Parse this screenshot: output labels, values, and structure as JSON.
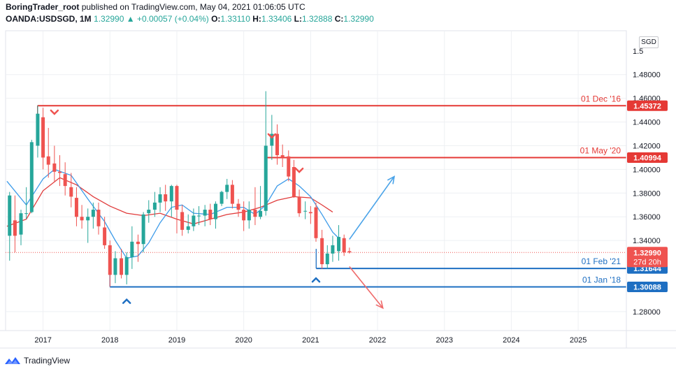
{
  "header": {
    "author": "BoringTrader_root",
    "published_text": "published on TradingView.com, May 04, 2021 01:06:05 UTC",
    "symbol": "OANDA:USDSGD, 1M",
    "last": "1.32990",
    "change_arrow": "▲",
    "change": "+0.00057 (+0.04%)",
    "o_label": "O:",
    "o_val": "1.33110",
    "h_label": "H:",
    "h_val": "1.33406",
    "l_label": "L:",
    "l_val": "1.32888",
    "c_label": "C:",
    "c_val": "1.32990"
  },
  "currency_badge": "SGD",
  "footer": {
    "brand": "TradingView",
    "logo_icon": "tradingview-logo-icon"
  },
  "colors": {
    "bull": "#26a69a",
    "bear": "#ef5350",
    "resistance": "#e53935",
    "support": "#1e6fc2",
    "ma_fast": "#3d9be9",
    "ma_slow": "#e03b3b",
    "arrow_up": "#4aa3e8",
    "arrow_down": "#ef6b6b"
  },
  "chart_data": {
    "type": "candlestick",
    "timeframe": "1M",
    "y_ticks": [
      "1.48000",
      "1.46000",
      "1.44000",
      "1.42000",
      "1.40000",
      "1.38000",
      "1.36000",
      "1.34000",
      "1.28000"
    ],
    "y_tick_values": [
      1.48,
      1.46,
      1.44,
      1.42,
      1.4,
      1.38,
      1.36,
      1.34,
      1.28
    ],
    "partial_top_tick": "1.5",
    "x_ticks": [
      "2017",
      "2018",
      "2019",
      "2020",
      "2021",
      "2022",
      "2023",
      "2024",
      "2025"
    ],
    "ylim": [
      1.264,
      1.517
    ],
    "xlim": [
      2016.44,
      2025.72
    ],
    "levels": [
      {
        "label": "01 Dec '16",
        "value": 1.45372,
        "badge": "1.45372",
        "kind": "resistance",
        "start": 2016.917
      },
      {
        "label": "01 May '20",
        "value": 1.40994,
        "badge": "1.40994",
        "kind": "resistance",
        "start": 2020.333
      },
      {
        "label": "01 Feb '21",
        "value": 1.31644,
        "badge": "1.31644",
        "kind": "support",
        "start": 2021.083
      },
      {
        "label": "01 Jan '18",
        "value": 1.30088,
        "badge": "1.30088",
        "kind": "support",
        "start": 2018.0
      }
    ],
    "last_price": {
      "value": 1.3299,
      "badge": "1.32990",
      "countdown": "27d 20h"
    },
    "candles": [
      {
        "t": 2016.5,
        "o": 1.344,
        "h": 1.381,
        "l": 1.323,
        "c": 1.378
      },
      {
        "t": 2016.58,
        "o": 1.357,
        "h": 1.378,
        "l": 1.33,
        "c": 1.344
      },
      {
        "t": 2016.67,
        "o": 1.345,
        "h": 1.366,
        "l": 1.336,
        "c": 1.363
      },
      {
        "t": 2016.75,
        "o": 1.363,
        "h": 1.385,
        "l": 1.358,
        "c": 1.363
      },
      {
        "t": 2016.83,
        "o": 1.364,
        "h": 1.425,
        "l": 1.363,
        "c": 1.423
      },
      {
        "t": 2016.92,
        "o": 1.42,
        "h": 1.454,
        "l": 1.41,
        "c": 1.447
      },
      {
        "t": 2017.0,
        "o": 1.444,
        "h": 1.452,
        "l": 1.4,
        "c": 1.41
      },
      {
        "t": 2017.08,
        "o": 1.411,
        "h": 1.435,
        "l": 1.393,
        "c": 1.404
      },
      {
        "t": 2017.17,
        "o": 1.405,
        "h": 1.42,
        "l": 1.39,
        "c": 1.398
      },
      {
        "t": 2017.25,
        "o": 1.398,
        "h": 1.412,
        "l": 1.386,
        "c": 1.397
      },
      {
        "t": 2017.33,
        "o": 1.396,
        "h": 1.406,
        "l": 1.378,
        "c": 1.386
      },
      {
        "t": 2017.42,
        "o": 1.385,
        "h": 1.397,
        "l": 1.368,
        "c": 1.377
      },
      {
        "t": 2017.5,
        "o": 1.376,
        "h": 1.385,
        "l": 1.352,
        "c": 1.36
      },
      {
        "t": 2017.58,
        "o": 1.36,
        "h": 1.37,
        "l": 1.35,
        "c": 1.357
      },
      {
        "t": 2017.67,
        "o": 1.357,
        "h": 1.367,
        "l": 1.338,
        "c": 1.36
      },
      {
        "t": 2017.75,
        "o": 1.36,
        "h": 1.372,
        "l": 1.35,
        "c": 1.366
      },
      {
        "t": 2017.83,
        "o": 1.366,
        "h": 1.372,
        "l": 1.345,
        "c": 1.352
      },
      {
        "t": 2017.92,
        "o": 1.351,
        "h": 1.36,
        "l": 1.333,
        "c": 1.336
      },
      {
        "t": 2018.0,
        "o": 1.336,
        "h": 1.34,
        "l": 1.301,
        "c": 1.311
      },
      {
        "t": 2018.08,
        "o": 1.311,
        "h": 1.331,
        "l": 1.304,
        "c": 1.325
      },
      {
        "t": 2018.17,
        "o": 1.325,
        "h": 1.333,
        "l": 1.308,
        "c": 1.311
      },
      {
        "t": 2018.25,
        "o": 1.311,
        "h": 1.33,
        "l": 1.303,
        "c": 1.326
      },
      {
        "t": 2018.33,
        "o": 1.326,
        "h": 1.352,
        "l": 1.316,
        "c": 1.339
      },
      {
        "t": 2018.42,
        "o": 1.339,
        "h": 1.345,
        "l": 1.322,
        "c": 1.337
      },
      {
        "t": 2018.5,
        "o": 1.337,
        "h": 1.364,
        "l": 1.33,
        "c": 1.362
      },
      {
        "t": 2018.58,
        "o": 1.363,
        "h": 1.374,
        "l": 1.355,
        "c": 1.366
      },
      {
        "t": 2018.67,
        "o": 1.366,
        "h": 1.381,
        "l": 1.36,
        "c": 1.372
      },
      {
        "t": 2018.75,
        "o": 1.372,
        "h": 1.385,
        "l": 1.364,
        "c": 1.379
      },
      {
        "t": 2018.83,
        "o": 1.379,
        "h": 1.387,
        "l": 1.365,
        "c": 1.373
      },
      {
        "t": 2018.92,
        "o": 1.373,
        "h": 1.387,
        "l": 1.36,
        "c": 1.386
      },
      {
        "t": 2019.0,
        "o": 1.386,
        "h": 1.387,
        "l": 1.346,
        "c": 1.366
      },
      {
        "t": 2019.08,
        "o": 1.364,
        "h": 1.37,
        "l": 1.344,
        "c": 1.349
      },
      {
        "t": 2019.17,
        "o": 1.349,
        "h": 1.362,
        "l": 1.346,
        "c": 1.352
      },
      {
        "t": 2019.25,
        "o": 1.352,
        "h": 1.367,
        "l": 1.348,
        "c": 1.361
      },
      {
        "t": 2019.33,
        "o": 1.361,
        "h": 1.369,
        "l": 1.353,
        "c": 1.361
      },
      {
        "t": 2019.42,
        "o": 1.361,
        "h": 1.37,
        "l": 1.352,
        "c": 1.366
      },
      {
        "t": 2019.5,
        "o": 1.366,
        "h": 1.371,
        "l": 1.353,
        "c": 1.358
      },
      {
        "t": 2019.58,
        "o": 1.358,
        "h": 1.373,
        "l": 1.35,
        "c": 1.371
      },
      {
        "t": 2019.67,
        "o": 1.371,
        "h": 1.382,
        "l": 1.369,
        "c": 1.381
      },
      {
        "t": 2019.75,
        "o": 1.381,
        "h": 1.392,
        "l": 1.375,
        "c": 1.387
      },
      {
        "t": 2019.83,
        "o": 1.387,
        "h": 1.391,
        "l": 1.367,
        "c": 1.371
      },
      {
        "t": 2019.92,
        "o": 1.371,
        "h": 1.375,
        "l": 1.36,
        "c": 1.366
      },
      {
        "t": 2020.0,
        "o": 1.366,
        "h": 1.373,
        "l": 1.348,
        "c": 1.357
      },
      {
        "t": 2020.08,
        "o": 1.357,
        "h": 1.373,
        "l": 1.35,
        "c": 1.366
      },
      {
        "t": 2020.17,
        "o": 1.366,
        "h": 1.385,
        "l": 1.353,
        "c": 1.36
      },
      {
        "t": 2020.25,
        "o": 1.36,
        "h": 1.386,
        "l": 1.358,
        "c": 1.365
      },
      {
        "t": 2020.33,
        "o": 1.365,
        "h": 1.466,
        "l": 1.361,
        "c": 1.42
      },
      {
        "t": 2020.42,
        "o": 1.42,
        "h": 1.446,
        "l": 1.408,
        "c": 1.43
      },
      {
        "t": 2020.5,
        "o": 1.43,
        "h": 1.438,
        "l": 1.404,
        "c": 1.412
      },
      {
        "t": 2020.58,
        "o": 1.412,
        "h": 1.421,
        "l": 1.402,
        "c": 1.41
      },
      {
        "t": 2020.67,
        "o": 1.411,
        "h": 1.416,
        "l": 1.39,
        "c": 1.394
      },
      {
        "t": 2020.75,
        "o": 1.402,
        "h": 1.408,
        "l": 1.376,
        "c": 1.377
      },
      {
        "t": 2020.83,
        "o": 1.377,
        "h": 1.383,
        "l": 1.36,
        "c": 1.363
      },
      {
        "t": 2020.92,
        "o": 1.365,
        "h": 1.373,
        "l": 1.358,
        "c": 1.365
      },
      {
        "t": 2021.0,
        "o": 1.364,
        "h": 1.369,
        "l": 1.354,
        "c": 1.363
      },
      {
        "t": 2021.08,
        "o": 1.368,
        "h": 1.372,
        "l": 1.339,
        "c": 1.342
      },
      {
        "t": 2021.17,
        "o": 1.342,
        "h": 1.349,
        "l": 1.316,
        "c": 1.32
      },
      {
        "t": 2021.25,
        "o": 1.32,
        "h": 1.336,
        "l": 1.316,
        "c": 1.329
      },
      {
        "t": 2021.33,
        "o": 1.329,
        "h": 1.344,
        "l": 1.322,
        "c": 1.336
      },
      {
        "t": 2021.42,
        "o": 1.331,
        "h": 1.353,
        "l": 1.323,
        "c": 1.343
      },
      {
        "t": 2021.5,
        "o": 1.342,
        "h": 1.345,
        "l": 1.327,
        "c": 1.33
      },
      {
        "t": 2021.58,
        "o": 1.331,
        "h": 1.334,
        "l": 1.329,
        "c": 1.33
      }
    ],
    "ma_fast": [
      [
        2016.46,
        1.39
      ],
      [
        2016.75,
        1.37
      ],
      [
        2017.0,
        1.392
      ],
      [
        2017.17,
        1.4
      ],
      [
        2017.42,
        1.395
      ],
      [
        2017.67,
        1.375
      ],
      [
        2017.92,
        1.356
      ],
      [
        2018.08,
        1.34
      ],
      [
        2018.25,
        1.325
      ],
      [
        2018.42,
        1.327
      ],
      [
        2018.58,
        1.338
      ],
      [
        2018.75,
        1.355
      ],
      [
        2018.92,
        1.368
      ],
      [
        2019.08,
        1.37
      ],
      [
        2019.25,
        1.363
      ],
      [
        2019.5,
        1.362
      ],
      [
        2019.75,
        1.368
      ],
      [
        2020.0,
        1.368
      ],
      [
        2020.17,
        1.362
      ],
      [
        2020.33,
        1.37
      ],
      [
        2020.5,
        1.386
      ],
      [
        2020.67,
        1.392
      ],
      [
        2020.83,
        1.386
      ],
      [
        2021.0,
        1.377
      ],
      [
        2021.17,
        1.362
      ],
      [
        2021.33,
        1.347
      ],
      [
        2021.42,
        1.342
      ]
    ],
    "ma_slow": [
      [
        2016.46,
        1.352
      ],
      [
        2016.75,
        1.358
      ],
      [
        2017.0,
        1.382
      ],
      [
        2017.25,
        1.393
      ],
      [
        2017.5,
        1.387
      ],
      [
        2017.75,
        1.377
      ],
      [
        2018.0,
        1.369
      ],
      [
        2018.25,
        1.363
      ],
      [
        2018.5,
        1.361
      ],
      [
        2018.75,
        1.363
      ],
      [
        2019.0,
        1.358
      ],
      [
        2019.25,
        1.354
      ],
      [
        2019.5,
        1.358
      ],
      [
        2019.75,
        1.362
      ],
      [
        2020.0,
        1.364
      ],
      [
        2020.25,
        1.368
      ],
      [
        2020.5,
        1.374
      ],
      [
        2020.75,
        1.377
      ],
      [
        2021.0,
        1.376
      ],
      [
        2021.17,
        1.37
      ],
      [
        2021.33,
        1.364
      ]
    ],
    "markers": [
      {
        "t": 2017.17,
        "price": 1.448,
        "dir": "down"
      },
      {
        "t": 2020.42,
        "price": 1.428,
        "dir": "down"
      },
      {
        "t": 2020.83,
        "price": 1.399,
        "dir": "down"
      },
      {
        "t": 2018.25,
        "price": 1.289,
        "dir": "up"
      },
      {
        "t": 2021.08,
        "price": 1.307,
        "dir": "up"
      }
    ],
    "projections": [
      {
        "from": [
          2021.58,
          1.341
        ],
        "to": [
          2022.25,
          1.394
        ],
        "dir": "up"
      },
      {
        "from": [
          2021.58,
          1.318
        ],
        "to": [
          2022.08,
          1.283
        ],
        "dir": "down"
      }
    ]
  }
}
